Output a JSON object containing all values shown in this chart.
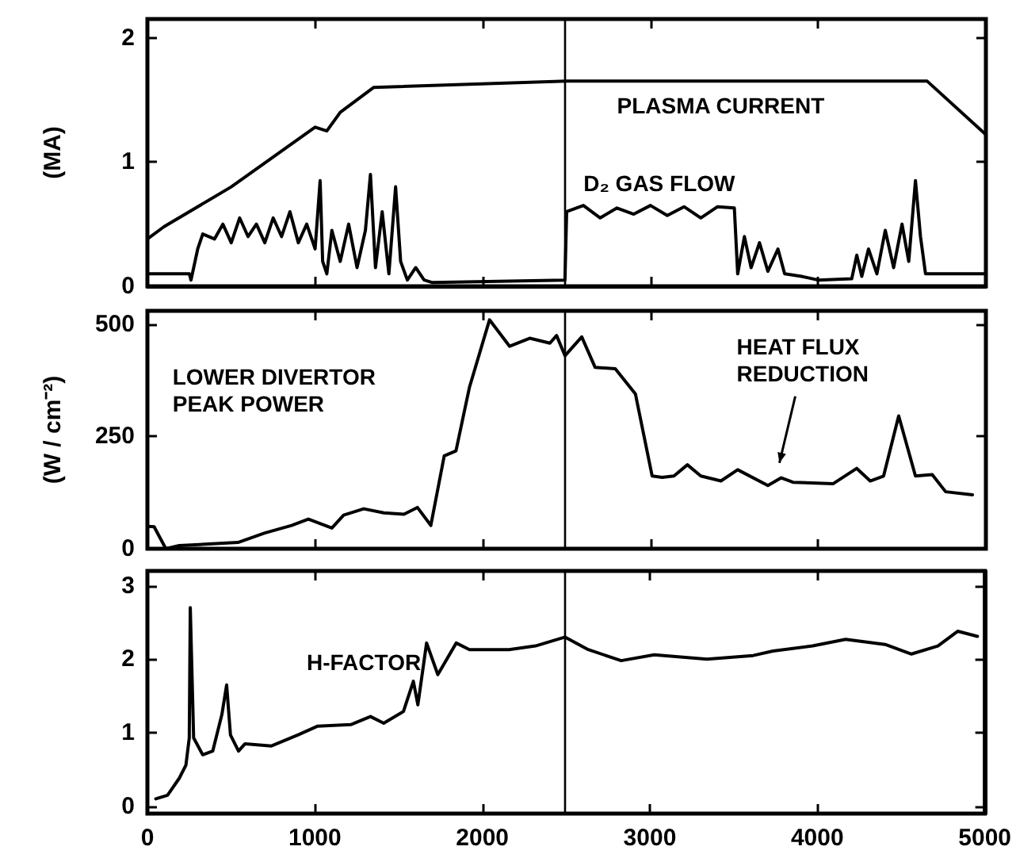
{
  "chart_data": [
    {
      "type": "line",
      "ylabel": "(MA)",
      "xlim": [
        0,
        5000
      ],
      "xticks": [
        0,
        1000,
        2000,
        3000,
        4000,
        5000
      ],
      "ylim": [
        0,
        2.15
      ],
      "yticks": [
        0,
        1,
        2
      ],
      "tick_labels": "y",
      "grid": false,
      "legend": false,
      "marker": "none",
      "line_style": "solid",
      "ref_lines": [
        {
          "axis": "x",
          "value": 2490,
          "color": "#000000"
        }
      ],
      "series": [
        {
          "name": "PLASMA CURRENT",
          "color": "#000000",
          "x": [
            0,
            100,
            500,
            1000,
            1070,
            1150,
            1350,
            2500,
            4650,
            5000
          ],
          "values": [
            0.38,
            0.48,
            0.8,
            1.28,
            1.25,
            1.4,
            1.6,
            1.65,
            1.65,
            1.22
          ]
        },
        {
          "name": "D₂ GAS FLOW",
          "color": "#000000",
          "x": [
            0,
            250,
            260,
            300,
            330,
            400,
            450,
            500,
            550,
            600,
            650,
            700,
            750,
            800,
            850,
            900,
            950,
            1000,
            1030,
            1045,
            1070,
            1100,
            1150,
            1200,
            1250,
            1300,
            1330,
            1360,
            1400,
            1440,
            1480,
            1510,
            1550,
            1600,
            1650,
            1700,
            2490,
            2500,
            2600,
            2700,
            2800,
            2900,
            3000,
            3100,
            3200,
            3300,
            3400,
            3500,
            3520,
            3560,
            3600,
            3650,
            3700,
            3760,
            3800,
            3900,
            4000,
            4200,
            4230,
            4260,
            4300,
            4350,
            4400,
            4450,
            4500,
            4540,
            4580,
            4610,
            4640,
            5000
          ],
          "values": [
            0.1,
            0.1,
            0.05,
            0.3,
            0.42,
            0.38,
            0.5,
            0.35,
            0.55,
            0.4,
            0.5,
            0.35,
            0.55,
            0.4,
            0.6,
            0.35,
            0.5,
            0.3,
            0.85,
            0.2,
            0.1,
            0.45,
            0.2,
            0.5,
            0.15,
            0.45,
            0.9,
            0.15,
            0.6,
            0.1,
            0.8,
            0.2,
            0.05,
            0.15,
            0.05,
            0.03,
            0.05,
            0.6,
            0.65,
            0.55,
            0.63,
            0.58,
            0.65,
            0.57,
            0.64,
            0.55,
            0.64,
            0.63,
            0.1,
            0.4,
            0.15,
            0.35,
            0.12,
            0.3,
            0.1,
            0.08,
            0.05,
            0.06,
            0.25,
            0.08,
            0.3,
            0.1,
            0.45,
            0.15,
            0.5,
            0.2,
            0.85,
            0.4,
            0.1,
            0.1
          ]
        }
      ]
    },
    {
      "type": "line",
      "ylabel": "(W / cm⁻²)",
      "xlim": [
        0,
        5000
      ],
      "xticks": [
        0,
        1000,
        2000,
        3000,
        4000,
        5000
      ],
      "ylim": [
        0,
        530
      ],
      "yticks": [
        0,
        250,
        500
      ],
      "tick_labels": "y",
      "grid": false,
      "legend": false,
      "marker": "none",
      "line_style": "solid",
      "ref_lines": [
        {
          "axis": "x",
          "value": 2490,
          "color": "#000000"
        }
      ],
      "annotations": [
        {
          "text": "HEAT FLUX\nREDUCTION",
          "x": 3750,
          "y": 170
        }
      ],
      "series": [
        {
          "name": "LOWER DIVERTOR\nPEAK POWER",
          "color": "#000000",
          "x": [
            0,
            40,
            110,
            190,
            540,
            700,
            860,
            960,
            1100,
            1170,
            1290,
            1410,
            1530,
            1610,
            1690,
            1770,
            1840,
            1920,
            2040,
            2160,
            2280,
            2400,
            2440,
            2490,
            2590,
            2670,
            2790,
            2910,
            3010,
            3070,
            3140,
            3220,
            3300,
            3420,
            3520,
            3700,
            3780,
            3850,
            4090,
            4230,
            4310,
            4390,
            4480,
            4580,
            4680,
            4760,
            4920
          ],
          "values": [
            50,
            49,
            0,
            7,
            14,
            35,
            52,
            66,
            46,
            75,
            89,
            80,
            77,
            92,
            52,
            207,
            218,
            359,
            510,
            451,
            469,
            458,
            475,
            430,
            472,
            404,
            401,
            345,
            162,
            159,
            162,
            187,
            162,
            151,
            176,
            141,
            158,
            148,
            145,
            179,
            151,
            162,
            296,
            162,
            165,
            127,
            120
          ]
        }
      ]
    },
    {
      "type": "line",
      "xlim": [
        0,
        5000
      ],
      "xticks": [
        0,
        1000,
        2000,
        3000,
        4000,
        5000
      ],
      "ylim": [
        -0.1,
        3.2
      ],
      "yticks": [
        0,
        1,
        2,
        3
      ],
      "grid": false,
      "legend": false,
      "marker": "none",
      "line_style": "solid",
      "ref_lines": [
        {
          "axis": "x",
          "value": 2490,
          "color": "#000000"
        }
      ],
      "series": [
        {
          "name": "H-FACTOR",
          "color": "#000000",
          "x": [
            50,
            120,
            190,
            230,
            250,
            256,
            276,
            330,
            390,
            445,
            473,
            496,
            544,
            583,
            741,
            898,
            1017,
            1214,
            1332,
            1411,
            1529,
            1588,
            1615,
            1667,
            1734,
            1844,
            1923,
            2159,
            2317,
            2494,
            2632,
            2829,
            3026,
            3341,
            3617,
            3735,
            3972,
            4169,
            4405,
            4562,
            4720,
            4838,
            4956
          ],
          "values": [
            0.1,
            0.15,
            0.38,
            0.56,
            0.93,
            2.7,
            0.93,
            0.7,
            0.75,
            1.25,
            1.65,
            0.97,
            0.75,
            0.85,
            0.82,
            0.97,
            1.09,
            1.11,
            1.22,
            1.13,
            1.29,
            1.7,
            1.38,
            2.22,
            1.79,
            2.22,
            2.13,
            2.13,
            2.18,
            2.3,
            2.13,
            1.98,
            2.06,
            2.0,
            2.05,
            2.11,
            2.18,
            2.27,
            2.2,
            2.07,
            2.18,
            2.38,
            2.31
          ]
        }
      ]
    }
  ]
}
